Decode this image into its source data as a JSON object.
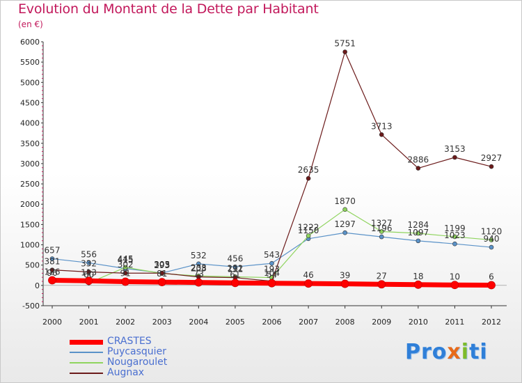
{
  "chart_data": {
    "type": "line",
    "title": "Evolution du Montant de la Dette par Habitant",
    "subtitle": "(en €)",
    "ylim": [
      -500,
      6000
    ],
    "y_ticks": [
      -500,
      0,
      500,
      1000,
      1500,
      2000,
      2500,
      3000,
      3500,
      4000,
      4500,
      5000,
      5500,
      6000
    ],
    "x": [
      "2000",
      "2001",
      "2002",
      "2003",
      "2004",
      "2005",
      "2006",
      "2007",
      "2008",
      "2009",
      "2010",
      "2011",
      "2012"
    ],
    "grid": false,
    "legend_position": "bottom-left",
    "series": [
      {
        "name": "CRASTES",
        "color": "#ff0000",
        "values": [
          126,
          113,
          91,
          81,
          73,
          61,
          54,
          46,
          39,
          27,
          18,
          10,
          6
        ]
      },
      {
        "name": "Puycasquier",
        "color": "#5a92c8",
        "values": [
          657,
          556,
          415,
          305,
          532,
          456,
          543,
          1150,
          1297,
          1196,
          1097,
          1023,
          940
        ]
      },
      {
        "name": "Nougaroulet",
        "color": "#8fd45e",
        "values": [
          96,
          60,
          445,
          293,
          233,
          212,
          193,
          1222,
          1870,
          1327,
          1284,
          1199,
          1120
        ]
      },
      {
        "name": "Augnax",
        "color": "#6b1a1a",
        "values": [
          381,
          332,
          302,
          303,
          208,
          191,
          104,
          2635,
          5751,
          3713,
          2886,
          3153,
          2927
        ]
      }
    ]
  },
  "logo_text": "Proxiti"
}
